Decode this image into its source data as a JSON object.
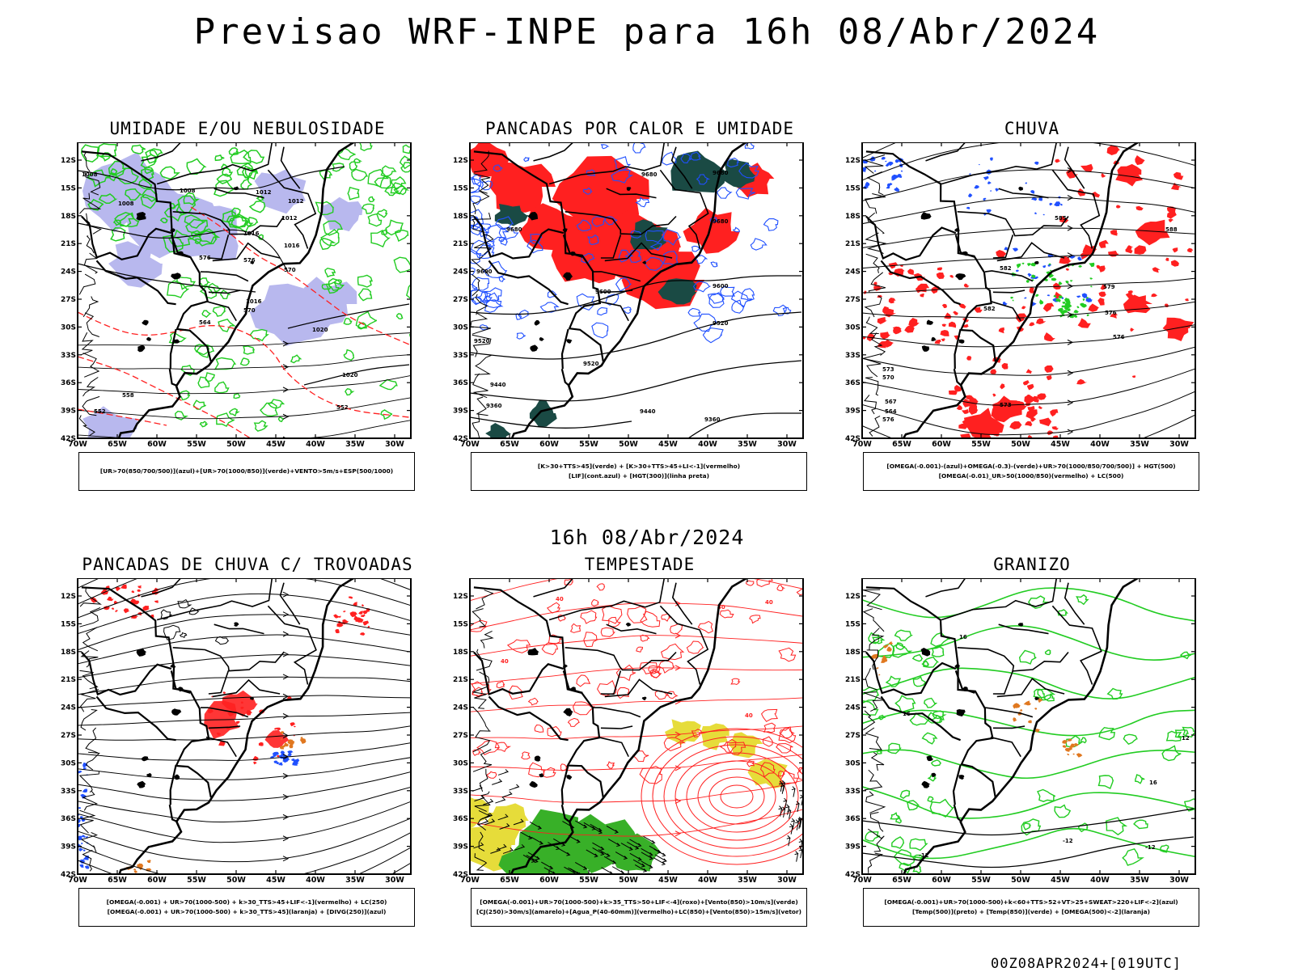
{
  "title": "Previsao WRF-INPE  para 16h 08/Abr/2024",
  "subtitle": "16h 08/Abr/2024",
  "footer": "00Z08APR2024+[019UTC]",
  "axes": {
    "lat_labels": [
      "12S",
      "15S",
      "18S",
      "21S",
      "24S",
      "27S",
      "30S",
      "33S",
      "36S",
      "39S",
      "42S"
    ],
    "lon_labels": [
      "70W",
      "65W",
      "60W",
      "55W",
      "50W",
      "45W",
      "40W",
      "35W",
      "30W"
    ]
  },
  "colors": {
    "red": "#ff2020",
    "green": "#22cc22",
    "blue": "#2050ff",
    "lavender": "#b8b8ee",
    "darkgreen": "#1a4a44",
    "yellow": "#e6dc3a",
    "orange": "#e07820",
    "field_green": "#38b028"
  },
  "panels": [
    {
      "id": "umidade",
      "title": "UMIDADE E/OU NEBULOSIDADE",
      "legend": [
        "[UR>70(850/700/500)](azul)+[UR>70(1000/850)](verde)+VENTO>5m/s+ESP(500/1000)"
      ],
      "contour_labels": [
        "1008",
        "1008",
        "1008",
        "1012",
        "1012",
        "1012",
        "1016",
        "1016",
        "1016",
        "1020",
        "1020",
        "576",
        "570",
        "564",
        "558",
        "552",
        "576",
        "570",
        "552"
      ]
    },
    {
      "id": "pancadas-calor",
      "title": "PANCADAS POR CALOR E UMIDADE",
      "legend": [
        "[K>30+TTS>45](verde) + [K>30+TTS>45+LI<-1](vermelho)",
        "[LIF](cont.azul) + [HGT(300)](linha preta)"
      ],
      "contour_labels": [
        "9680",
        "9680",
        "9680",
        "9680",
        "9600",
        "9600",
        "9600",
        "9520",
        "9520",
        "9520",
        "9440",
        "9440",
        "9360",
        "9360"
      ]
    },
    {
      "id": "chuva",
      "title": "CHUVA",
      "legend": [
        "[OMEGA(-0.001)-(azul)+OMEGA(-0.3)-(verde)+UR>70(1000/850/700/500)] + HGT(500)",
        "[OMEGA(-0.01)_UR>50(1000/850)(vermelho) + LC(500)"
      ],
      "contour_labels": [
        "582",
        "585",
        "588",
        "582",
        "579",
        "576",
        "576",
        "573",
        "570",
        "567",
        "564",
        "576",
        "573"
      ]
    },
    {
      "id": "pancadas-trovoadas",
      "title": "PANCADAS DE CHUVA C/ TROVOADAS",
      "legend": [
        "[OMEGA(-0.001) + UR>70(1000-500) + k>30_TTS>45+LIF<-1](vermelho) + LC(250)",
        "[OMEGA(-0.001) + UR>70(1000-500) + k>30_TTS>45](laranja) + [DIVG(250)](azul)"
      ],
      "contour_labels": []
    },
    {
      "id": "tempestade",
      "title": "TEMPESTADE",
      "legend": [
        "[OMEGA(-0.001)+UR>70(1000-500)+k>35_TTS>50+LIF<-4](roxo)+[Vento(850)>10m/s](verde)",
        "[CJ(250)>30m/s](amarelo)+[Agua_P(40-60mm)](vermelho)+LC(850)+[Vento(850)>15m/s](vetor)"
      ],
      "contour_labels": [
        "40",
        "40",
        "40",
        "40",
        "40"
      ]
    },
    {
      "id": "granizo",
      "title": "GRANIZO",
      "legend": [
        "[OMEGA(-0.001)+UR>70(1000-500)+k<60+TTS>52+VT>25+SWEAT>220+LIF<-2](azul)",
        "[Temp(500)](preto) + [Temp(850)](verde) + [OMEGA(500)<-2](laranja)"
      ],
      "contour_labels": [
        "16",
        "16",
        "12",
        "-12",
        "-12",
        "-12",
        "16"
      ]
    }
  ]
}
